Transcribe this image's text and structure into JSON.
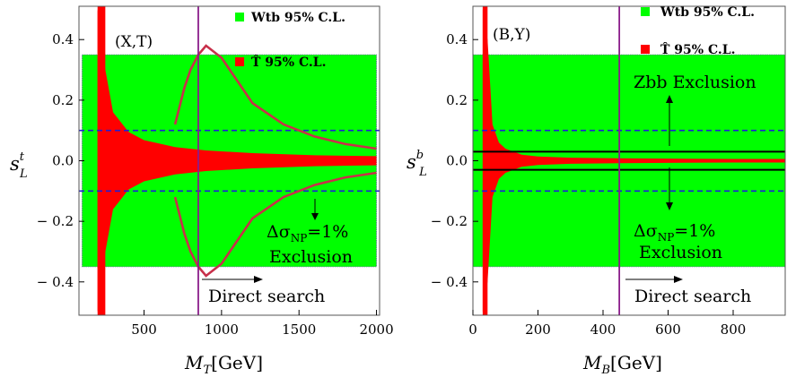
{
  "chart_data": [
    {
      "type": "area",
      "panel_label": "(X,T)",
      "xlabel_main": "M",
      "xlabel_sub": "T",
      "xlabel_unit": "[GeV]",
      "ylabel_main": "s",
      "ylabel_sup": "t",
      "ylabel_sub": "L",
      "xlim": [
        80,
        2020
      ],
      "ylim": [
        -0.51,
        0.51
      ],
      "xticks": [
        {
          "v": 500,
          "label": "500"
        },
        {
          "v": 1000,
          "label": "1000"
        },
        {
          "v": 1500,
          "label": "1500"
        },
        {
          "v": 2000,
          "label": "2000"
        }
      ],
      "yticks": [
        {
          "v": 0.4,
          "label": "0.4"
        },
        {
          "v": 0.2,
          "label": "0.2"
        },
        {
          "v": 0.0,
          "label": "0.0"
        },
        {
          "v": -0.2,
          "label": "− 0.2"
        },
        {
          "v": -0.4,
          "label": "− 0.4"
        }
      ],
      "legend": [
        {
          "label": "Wtb 95% C.L.",
          "color": "#00ff00"
        },
        {
          "label": "T̂ 95% C.L.",
          "color": "#ff0000"
        }
      ],
      "green_band": {
        "x": [
          100,
          2000
        ],
        "y": [
          -0.35,
          0.35
        ]
      },
      "red_region": {
        "x": [
          200,
          250,
          300,
          400,
          500,
          700,
          900,
          1200,
          1600,
          2000
        ],
        "half_width": [
          0.5,
          0.3,
          0.16,
          0.095,
          0.068,
          0.045,
          0.034,
          0.025,
          0.018,
          0.015
        ]
      },
      "dashed_lines": [
        0.1,
        -0.1
      ],
      "curves": {
        "x": [
          700,
          720,
          760,
          800,
          850,
          900,
          1000,
          1200,
          1400,
          1600,
          1800,
          2000
        ],
        "y": [
          0.12,
          0.16,
          0.24,
          0.3,
          0.35,
          0.38,
          0.34,
          0.19,
          0.12,
          0.08,
          0.055,
          0.04
        ]
      },
      "vertical_line": 850,
      "annotations": {
        "sigma_title": "Δσ",
        "sigma_sub": "NP",
        "sigma_rest": "=1%",
        "exclusion": "Exclusion",
        "direct_search": "Direct search"
      },
      "colors": {
        "green": "#00ff00",
        "red": "#ff0000",
        "curve": "#c8304a",
        "vline": "#8b1c8b",
        "dash": "#1f1fd6"
      }
    },
    {
      "type": "area",
      "panel_label": "(B,Y)",
      "xlabel_main": "M",
      "xlabel_sub": "B",
      "xlabel_unit": "[GeV]",
      "ylabel_main": "s",
      "ylabel_sup": "b",
      "ylabel_sub": "L",
      "xlim": [
        0,
        960
      ],
      "ylim": [
        -0.51,
        0.51
      ],
      "xticks": [
        {
          "v": 0,
          "label": "0"
        },
        {
          "v": 200,
          "label": "200"
        },
        {
          "v": 400,
          "label": "400"
        },
        {
          "v": 600,
          "label": "600"
        },
        {
          "v": 800,
          "label": "800"
        }
      ],
      "yticks": [
        {
          "v": 0.4,
          "label": "0.4"
        },
        {
          "v": 0.2,
          "label": "0.2"
        },
        {
          "v": 0.0,
          "label": "0.0"
        },
        {
          "v": -0.2,
          "label": "− 0.2"
        },
        {
          "v": -0.4,
          "label": "− 0.4"
        }
      ],
      "legend": [
        {
          "label": "Wtb 95% C.L.",
          "color": "#00ff00"
        },
        {
          "label": "T̂ 95% C.L.",
          "color": "#ff0000"
        }
      ],
      "green_band": {
        "x": [
          0,
          960
        ],
        "y": [
          -0.35,
          0.35
        ]
      },
      "red_region": {
        "x": [
          30,
          45,
          60,
          80,
          100,
          150,
          200,
          300,
          450,
          600,
          800,
          960
        ],
        "half_width": [
          0.5,
          0.4,
          0.12,
          0.06,
          0.04,
          0.02,
          0.014,
          0.01,
          0.008,
          0.007,
          0.006,
          0.006
        ]
      },
      "dashed_lines": [
        0.1,
        -0.1
      ],
      "solid_lines": [
        0.03,
        -0.03
      ],
      "vertical_line": 450,
      "annotations": {
        "zbb": "Zbb Exclusion",
        "sigma_title": "Δσ",
        "sigma_sub": "NP",
        "sigma_rest": "=1%",
        "exclusion": "Exclusion",
        "direct_search": "Direct search"
      },
      "colors": {
        "green": "#00ff00",
        "red": "#ff0000",
        "vline": "#8b1c8b",
        "dash": "#1f1fd6"
      }
    }
  ]
}
